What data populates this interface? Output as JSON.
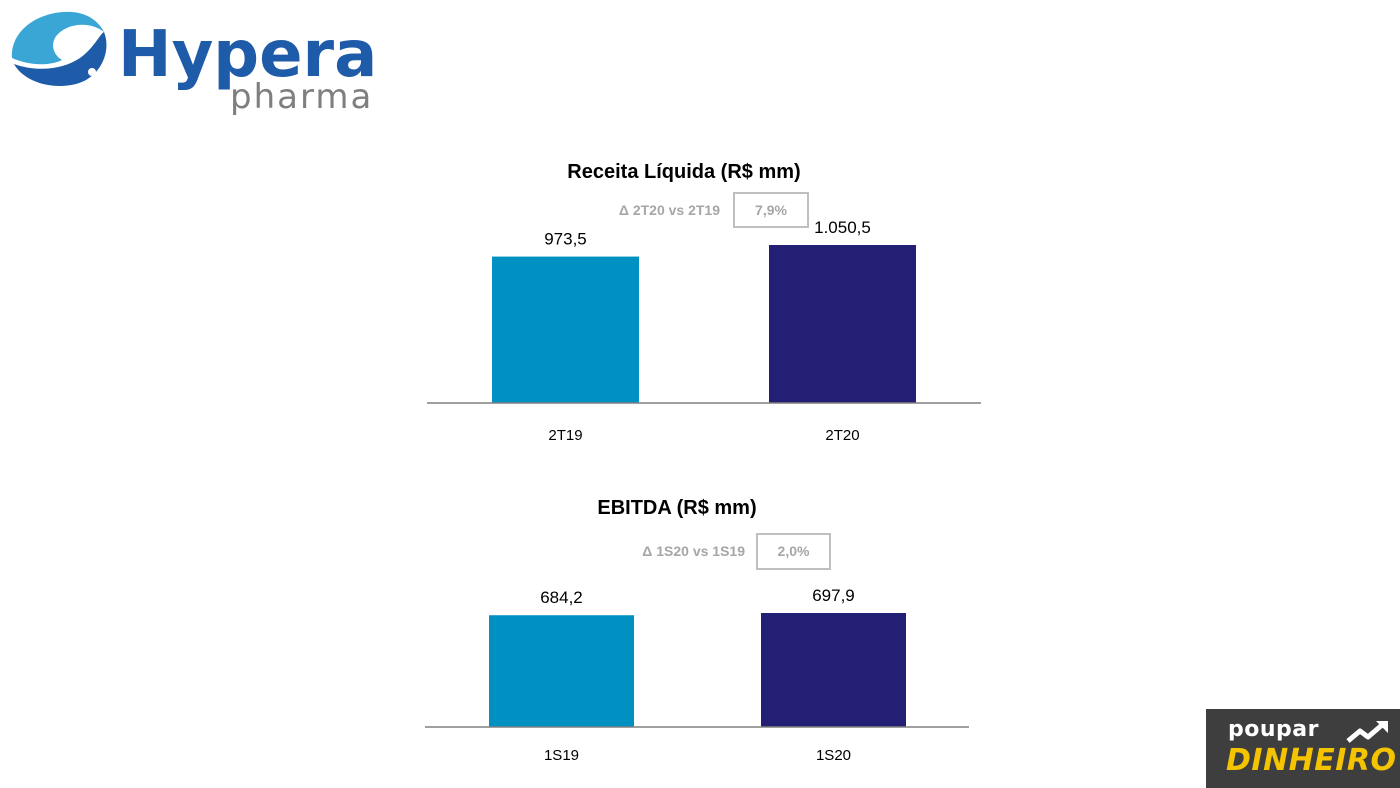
{
  "brand": {
    "name": "Hypera",
    "sub": "pharma"
  },
  "watermark": {
    "line1": "poupar",
    "line2": "DINHEIRO"
  },
  "colors": {
    "series_2019": "#0090c2",
    "series_2020": "#231f74",
    "muted": "#a6a6a6",
    "axis": "#808080",
    "logo_blue": "#1e5ba8",
    "logo_gray": "#7f7f7f"
  },
  "chart_data": [
    {
      "type": "bar",
      "title": "Receita Líquida (R$ mm)",
      "delta_label": "Δ 2T20 vs 2T19",
      "delta_value": "7,9%",
      "categories": [
        "2T19",
        "2T20"
      ],
      "values": [
        973.5,
        1050.5
      ],
      "value_labels": [
        "973,5",
        "1.050,5"
      ],
      "ylim": [
        0,
        1100
      ]
    },
    {
      "type": "bar",
      "title": "EBITDA (R$ mm)",
      "delta_label": "Δ 1S20 vs 1S19",
      "delta_value": "2,0%",
      "categories": [
        "1S19",
        "1S20"
      ],
      "values": [
        684.2,
        697.9
      ],
      "value_labels": [
        "684,2",
        "697,9"
      ],
      "ylim": [
        0,
        700
      ]
    }
  ]
}
